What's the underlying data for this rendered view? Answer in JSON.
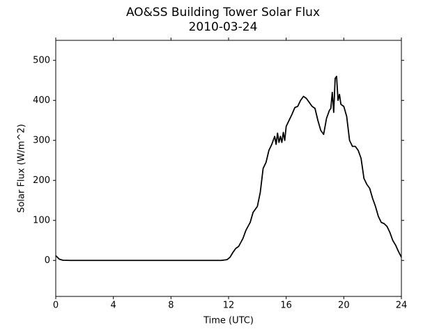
{
  "chart_data": {
    "type": "line",
    "title": "AO&SS Building Tower Solar Flux",
    "subtitle": "2010-03-24",
    "x_label": "Time (UTC)",
    "y_label": "Solar Flux (W/m^2)",
    "xlim": [
      0,
      24
    ],
    "xticks": [
      0,
      4,
      8,
      12,
      16,
      20,
      24
    ],
    "ylim": [
      -90,
      550
    ],
    "yticks": [
      0,
      100,
      200,
      300,
      400,
      500
    ],
    "grid": false,
    "series": [
      {
        "color": "#000000",
        "x": [
          0,
          0.25,
          0.5,
          1,
          4,
          8,
          11.5,
          11.9,
          12.1,
          12.3,
          12.5,
          12.7,
          13,
          13.2,
          13.5,
          13.7,
          14,
          14.2,
          14.4,
          14.6,
          14.8,
          15,
          15.2,
          15.3,
          15.4,
          15.5,
          15.6,
          15.7,
          15.8,
          15.9,
          16,
          16.2,
          16.4,
          16.6,
          16.8,
          17,
          17.2,
          17.4,
          17.6,
          17.8,
          18,
          18.2,
          18.4,
          18.6,
          18.8,
          19,
          19.1,
          19.2,
          19.3,
          19.4,
          19.5,
          19.6,
          19.7,
          19.8,
          20,
          20.2,
          20.4,
          20.6,
          20.8,
          21,
          21.2,
          21.4,
          21.6,
          21.8,
          22,
          22.2,
          22.4,
          22.6,
          22.8,
          23,
          23.2,
          23.4,
          23.6,
          23.8,
          24
        ],
        "values": [
          12,
          3,
          0.5,
          0,
          0,
          0,
          0,
          2,
          8,
          20,
          30,
          35,
          55,
          75,
          95,
          120,
          135,
          170,
          230,
          245,
          275,
          290,
          310,
          290,
          318,
          295,
          310,
          295,
          320,
          300,
          335,
          350,
          365,
          382,
          385,
          400,
          410,
          405,
          395,
          385,
          380,
          350,
          325,
          315,
          355,
          375,
          380,
          420,
          370,
          455,
          460,
          400,
          415,
          390,
          385,
          360,
          300,
          285,
          285,
          275,
          255,
          205,
          190,
          180,
          155,
          135,
          110,
          95,
          92,
          85,
          70,
          50,
          38,
          22,
          8
        ]
      }
    ]
  }
}
